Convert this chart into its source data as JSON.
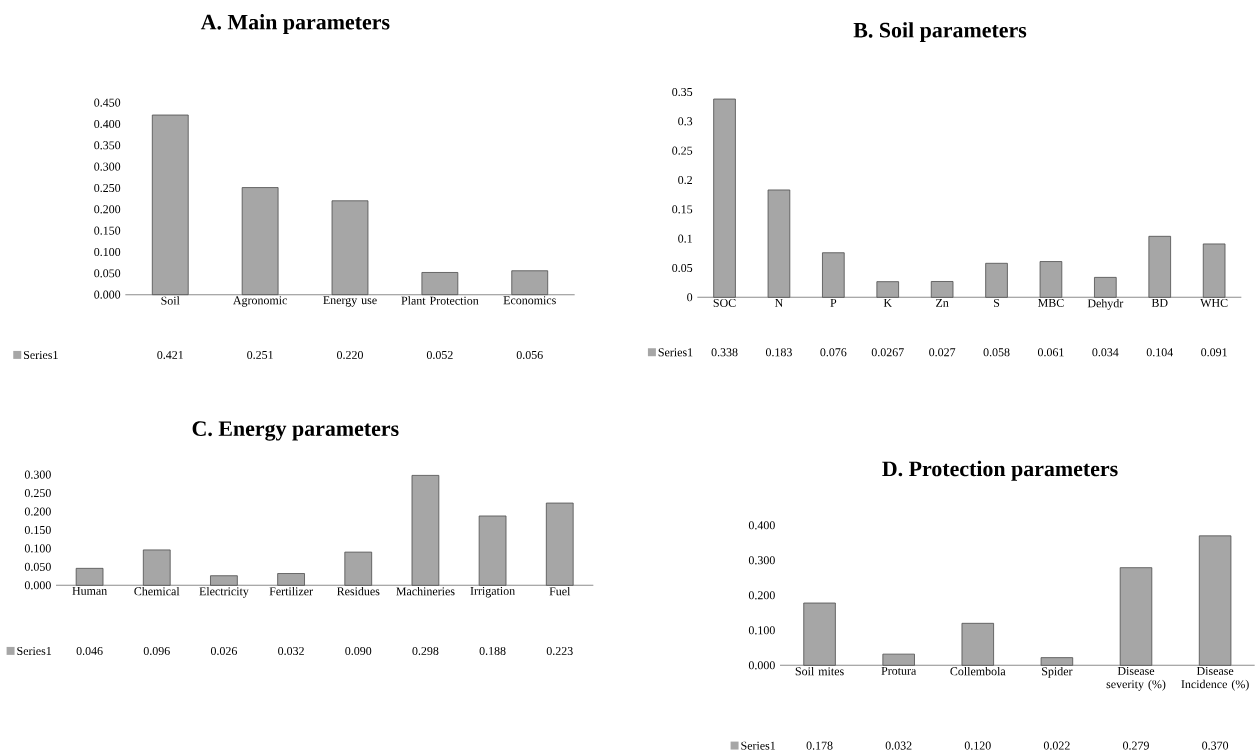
{
  "chart_data": [
    {
      "type": "bar",
      "title": "A. Main parameters",
      "categories": [
        "Soil",
        "Agronomic",
        "Energy use",
        "Plant Protection",
        "Economics"
      ],
      "series": [
        {
          "name": "Series1",
          "color": "#a6a6a6",
          "values": [
            0.421,
            0.251,
            0.22,
            0.052,
            0.056
          ],
          "value_labels": [
            "0.421",
            "0.251",
            "0.220",
            "0.052",
            "0.056"
          ]
        }
      ],
      "ylim": [
        0,
        0.45
      ],
      "yticks": [
        {
          "value": 0,
          "label": "0.000"
        },
        {
          "value": 0.05,
          "label": "0.050"
        },
        {
          "value": 0.1,
          "label": "0.100"
        },
        {
          "value": 0.15,
          "label": "0.150"
        },
        {
          "value": 0.2,
          "label": "0.200"
        },
        {
          "value": 0.25,
          "label": "0.250"
        },
        {
          "value": 0.3,
          "label": "0.300"
        },
        {
          "value": 0.35,
          "label": "0.350"
        },
        {
          "value": 0.4,
          "label": "0.400"
        },
        {
          "value": 0.45,
          "label": "0.450"
        }
      ]
    },
    {
      "type": "bar",
      "title": "B. Soil parameters",
      "categories": [
        "SOC",
        "N",
        "P",
        "K",
        "Zn",
        "S",
        "MBC",
        "Dehydr",
        "BD",
        "WHC"
      ],
      "series": [
        {
          "name": "Series1",
          "color": "#a6a6a6",
          "values": [
            0.338,
            0.183,
            0.076,
            0.0267,
            0.027,
            0.058,
            0.061,
            0.034,
            0.104,
            0.091
          ],
          "value_labels": [
            "0.338",
            "0.183",
            "0.076",
            "0.0267",
            "0.027",
            "0.058",
            "0.061",
            "0.034",
            "0.104",
            "0.091"
          ]
        }
      ],
      "ylim": [
        0,
        0.35
      ],
      "yticks": [
        0,
        0.05,
        0.1,
        0.15,
        0.2,
        0.25,
        0.3,
        0.35
      ]
    },
    {
      "type": "bar",
      "title": "C. Energy parameters",
      "categories": [
        "Human",
        "Chemical",
        "Electricity",
        "Fertilizer",
        "Residues",
        "Machineries",
        "Irrigation",
        "Fuel"
      ],
      "series": [
        {
          "name": "Series1",
          "color": "#a6a6a6",
          "values": [
            0.046,
            0.096,
            0.026,
            0.032,
            0.09,
            0.298,
            0.188,
            0.223
          ],
          "value_labels": [
            "0.046",
            "0.096",
            "0.026",
            "0.032",
            "0.090",
            "0.298",
            "0.188",
            "0.223"
          ]
        }
      ],
      "ylim": [
        0,
        0.3
      ],
      "yticks": [
        {
          "value": 0,
          "label": "0.000"
        },
        {
          "value": 0.05,
          "label": "0.050"
        },
        {
          "value": 0.1,
          "label": "0.100"
        },
        {
          "value": 0.15,
          "label": "0.150"
        },
        {
          "value": 0.2,
          "label": "0.200"
        },
        {
          "value": 0.25,
          "label": "0.250"
        },
        {
          "value": 0.3,
          "label": "0.300"
        }
      ]
    },
    {
      "type": "bar",
      "title": "D. Protection parameters",
      "categories": [
        "Soil mites",
        "Protura",
        "Collembola",
        "Spider",
        "Disease severity (%)",
        "Disease Incidence (%)"
      ],
      "series": [
        {
          "name": "Series1",
          "color": "#a6a6a6",
          "values": [
            0.178,
            0.032,
            0.12,
            0.022,
            0.279,
            0.37
          ],
          "value_labels": [
            "0.178",
            "0.032",
            "0.120",
            "0.022",
            "0.279",
            "0.370"
          ]
        }
      ],
      "ylim": [
        0,
        0.4
      ],
      "yticks": [
        {
          "value": 0,
          "label": "0.000"
        },
        {
          "value": 0.1,
          "label": "0.100"
        },
        {
          "value": 0.2,
          "label": "0.200"
        },
        {
          "value": 0.3,
          "label": "0.300"
        },
        {
          "value": 0.4,
          "label": "0.400"
        }
      ]
    }
  ]
}
